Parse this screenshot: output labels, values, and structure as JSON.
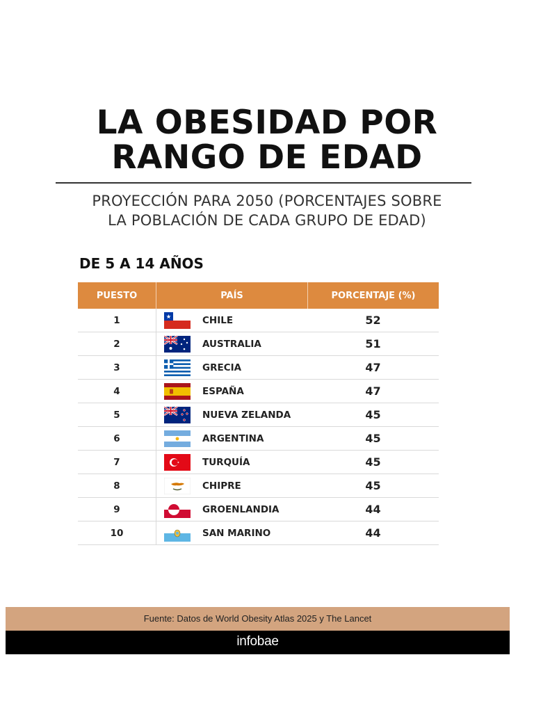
{
  "header": {
    "title_line1": "LA OBESIDAD POR",
    "title_line2": "RANGO DE EDAD",
    "subtitle_line1": "PROYECCIÓN PARA 2050 (PORCENTAJES SOBRE",
    "subtitle_line2": "LA POBLACIÓN DE CADA GRUPO DE EDAD)"
  },
  "section": {
    "label": "DE 5 A 14 AÑOS"
  },
  "table": {
    "header_color": "#dd8a3f",
    "columns": [
      "PUESTO",
      "PAÍS",
      "PORCENTAJE (%)"
    ],
    "rows": [
      {
        "rank": "1",
        "country": "CHILE",
        "percent": "52",
        "flag_icon": "chile-flag-icon"
      },
      {
        "rank": "2",
        "country": "AUSTRALIA",
        "percent": "51",
        "flag_icon": "australia-flag-icon"
      },
      {
        "rank": "3",
        "country": "GRECIA",
        "percent": "47",
        "flag_icon": "greece-flag-icon"
      },
      {
        "rank": "4",
        "country": "ESPAÑA",
        "percent": "47",
        "flag_icon": "spain-flag-icon"
      },
      {
        "rank": "5",
        "country": "NUEVA ZELANDA",
        "percent": "45",
        "flag_icon": "new-zealand-flag-icon"
      },
      {
        "rank": "6",
        "country": "ARGENTINA",
        "percent": "45",
        "flag_icon": "argentina-flag-icon"
      },
      {
        "rank": "7",
        "country": "TURQUÍA",
        "percent": "45",
        "flag_icon": "turkey-flag-icon"
      },
      {
        "rank": "8",
        "country": "CHIPRE",
        "percent": "45",
        "flag_icon": "cyprus-flag-icon"
      },
      {
        "rank": "9",
        "country": "GROENLANDIA",
        "percent": "44",
        "flag_icon": "greenland-flag-icon"
      },
      {
        "rank": "10",
        "country": "SAN MARINO",
        "percent": "44",
        "flag_icon": "san-marino-flag-icon"
      }
    ]
  },
  "footer": {
    "source": "Fuente: Datos de World Obesity Atlas 2025 y The Lancet",
    "brand": "infobae",
    "source_bar_color": "#d3a47f",
    "brand_bar_color": "#000000"
  }
}
